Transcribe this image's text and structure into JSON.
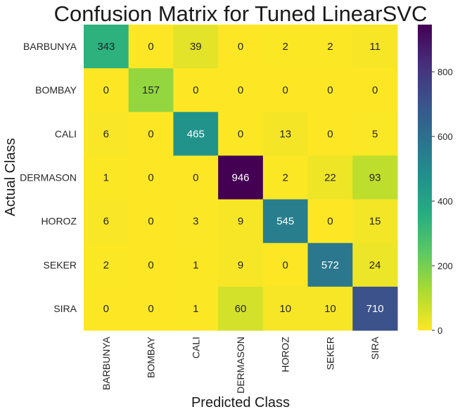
{
  "chart_data": {
    "type": "heatmap",
    "title": "Confusion Matrix for Tuned LinearSVC",
    "xlabel": "Predicted Class",
    "ylabel": "Actual Class",
    "x_categories": [
      "BARBUNYA",
      "BOMBAY",
      "CALI",
      "DERMASON",
      "HOROZ",
      "SEKER",
      "SIRA"
    ],
    "y_categories": [
      "BARBUNYA",
      "BOMBAY",
      "CALI",
      "DERMASON",
      "HOROZ",
      "SEKER",
      "SIRA"
    ],
    "values": [
      [
        343,
        0,
        39,
        0,
        2,
        2,
        11
      ],
      [
        0,
        157,
        0,
        0,
        0,
        0,
        0
      ],
      [
        6,
        0,
        465,
        0,
        13,
        0,
        5
      ],
      [
        1,
        0,
        0,
        946,
        2,
        22,
        93
      ],
      [
        6,
        0,
        3,
        9,
        545,
        0,
        15
      ],
      [
        2,
        0,
        1,
        9,
        0,
        572,
        24
      ],
      [
        0,
        0,
        1,
        60,
        10,
        10,
        710
      ]
    ],
    "colormap": "viridis_r",
    "vmin": 0,
    "vmax": 946,
    "colorbar_ticks": [
      0,
      200,
      400,
      600,
      800
    ],
    "colorbar_tick_labels": [
      "0",
      "200",
      "400",
      "600",
      "800"
    ]
  }
}
